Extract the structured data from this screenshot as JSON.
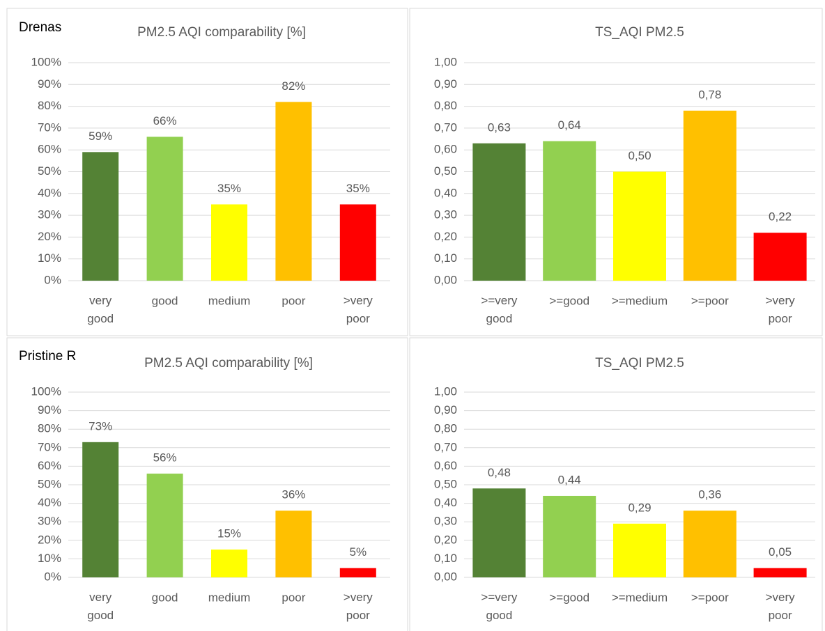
{
  "chart_data": [
    {
      "type": "bar",
      "station": "Drenas",
      "title": "PM2.5 AQI comparability [%]",
      "categories": [
        "very good",
        "good",
        "medium",
        "poor",
        ">very poor"
      ],
      "values": [
        59,
        66,
        35,
        82,
        35
      ],
      "value_labels": [
        "59%",
        "66%",
        "35%",
        "82%",
        "35%"
      ],
      "colors": [
        "#548235",
        "#92d050",
        "#ffff00",
        "#ffc000",
        "#ff0000"
      ],
      "ylim": [
        0,
        100
      ],
      "yticks": [
        {
          "value": 0,
          "label": "0%"
        },
        {
          "value": 10,
          "label": "10%"
        },
        {
          "value": 20,
          "label": "20%"
        },
        {
          "value": 30,
          "label": "30%"
        },
        {
          "value": 40,
          "label": "40%"
        },
        {
          "value": 50,
          "label": "50%"
        },
        {
          "value": 60,
          "label": "60%"
        },
        {
          "value": 70,
          "label": "70%"
        },
        {
          "value": 80,
          "label": "80%"
        },
        {
          "value": 90,
          "label": "90%"
        },
        {
          "value": 100,
          "label": "100%"
        }
      ],
      "grid": true
    },
    {
      "type": "bar",
      "title": "TS_AQI PM2.5",
      "categories": [
        ">=very good",
        ">=good",
        ">=medium",
        ">=poor",
        ">very poor"
      ],
      "values": [
        0.63,
        0.64,
        0.5,
        0.78,
        0.22
      ],
      "value_labels": [
        "0,63",
        "0,64",
        "0,50",
        "0,78",
        "0,22"
      ],
      "colors": [
        "#548235",
        "#92d050",
        "#ffff00",
        "#ffc000",
        "#ff0000"
      ],
      "ylim": [
        0,
        1
      ],
      "yticks": [
        {
          "value": 0,
          "label": "0,00"
        },
        {
          "value": 0.1,
          "label": "0,10"
        },
        {
          "value": 0.2,
          "label": "0,20"
        },
        {
          "value": 0.3,
          "label": "0,30"
        },
        {
          "value": 0.4,
          "label": "0,40"
        },
        {
          "value": 0.5,
          "label": "0,50"
        },
        {
          "value": 0.6,
          "label": "0,60"
        },
        {
          "value": 0.7,
          "label": "0,70"
        },
        {
          "value": 0.8,
          "label": "0,80"
        },
        {
          "value": 0.9,
          "label": "0,90"
        },
        {
          "value": 1,
          "label": "1,00"
        }
      ],
      "grid": true
    },
    {
      "type": "bar",
      "station": "Pristine R",
      "title": "PM2.5 AQI comparability [%]",
      "categories": [
        "very good",
        "good",
        "medium",
        "poor",
        ">very poor"
      ],
      "values": [
        73,
        56,
        15,
        36,
        5
      ],
      "value_labels": [
        "73%",
        "56%",
        "15%",
        "36%",
        "5%"
      ],
      "colors": [
        "#548235",
        "#92d050",
        "#ffff00",
        "#ffc000",
        "#ff0000"
      ],
      "ylim": [
        0,
        100
      ],
      "yticks": [
        {
          "value": 0,
          "label": "0%"
        },
        {
          "value": 10,
          "label": "10%"
        },
        {
          "value": 20,
          "label": "20%"
        },
        {
          "value": 30,
          "label": "30%"
        },
        {
          "value": 40,
          "label": "40%"
        },
        {
          "value": 50,
          "label": "50%"
        },
        {
          "value": 60,
          "label": "60%"
        },
        {
          "value": 70,
          "label": "70%"
        },
        {
          "value": 80,
          "label": "80%"
        },
        {
          "value": 90,
          "label": "90%"
        },
        {
          "value": 100,
          "label": "100%"
        }
      ],
      "grid": true
    },
    {
      "type": "bar",
      "title": "TS_AQI PM2.5",
      "categories": [
        ">=very good",
        ">=good",
        ">=medium",
        ">=poor",
        ">very poor"
      ],
      "values": [
        0.48,
        0.44,
        0.29,
        0.36,
        0.05
      ],
      "value_labels": [
        "0,48",
        "0,44",
        "0,29",
        "0,36",
        "0,05"
      ],
      "colors": [
        "#548235",
        "#92d050",
        "#ffff00",
        "#ffc000",
        "#ff0000"
      ],
      "ylim": [
        0,
        1
      ],
      "yticks": [
        {
          "value": 0,
          "label": "0,00"
        },
        {
          "value": 0.1,
          "label": "0,10"
        },
        {
          "value": 0.2,
          "label": "0,20"
        },
        {
          "value": 0.3,
          "label": "0,30"
        },
        {
          "value": 0.4,
          "label": "0,40"
        },
        {
          "value": 0.5,
          "label": "0,50"
        },
        {
          "value": 0.6,
          "label": "0,60"
        },
        {
          "value": 0.7,
          "label": "0,70"
        },
        {
          "value": 0.8,
          "label": "0,80"
        },
        {
          "value": 0.9,
          "label": "0,90"
        },
        {
          "value": 1,
          "label": "1,00"
        }
      ],
      "grid": true
    }
  ]
}
